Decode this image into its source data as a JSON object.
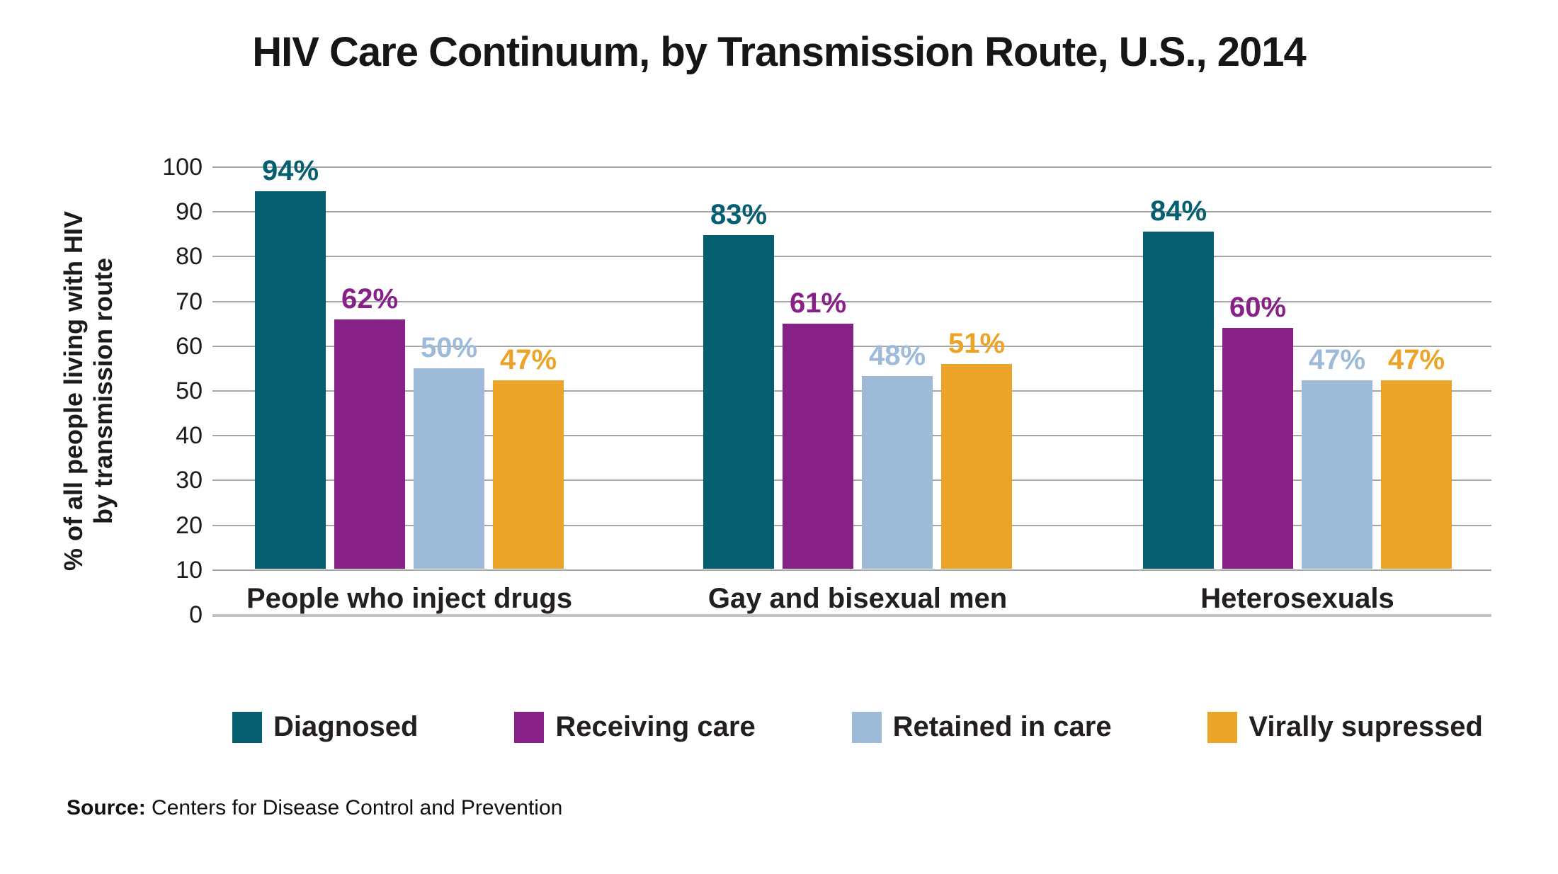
{
  "title": "HIV Care Continuum, by Transmission Route, U.S., 2014",
  "y_axis": {
    "label_lines": [
      "% of all people living with HIV",
      "by transmission route"
    ],
    "ticks": [
      100,
      90,
      80,
      70,
      60,
      50,
      40,
      30,
      20,
      10,
      0
    ]
  },
  "source": {
    "prefix": "Source:",
    "text": " Centers for Disease Control and Prevention"
  },
  "colors": {
    "teal": "#055F70",
    "purple": "#872188",
    "light_blue": "#9DBAD9",
    "orange": "#EBA428",
    "gridline": "#A6A6A6",
    "baseline": "#C2C2C2"
  },
  "chart_data": {
    "type": "bar",
    "title": "HIV Care Continuum, by Transmission Route, U.S., 2014",
    "categories": [
      "People who inject drugs",
      "Gay and bisexual men",
      "Heterosexuals"
    ],
    "series": [
      {
        "name": "Diagnosed",
        "color": "#055F70",
        "values": [
          94,
          83,
          84
        ]
      },
      {
        "name": "Receiving care",
        "color": "#872188",
        "values": [
          62,
          61,
          60
        ]
      },
      {
        "name": "Retained in care",
        "color": "#9DBAD9",
        "values": [
          50,
          48,
          47
        ]
      },
      {
        "name": "Virally supressed",
        "color": "#EBA428",
        "values": [
          47,
          51,
          47
        ]
      }
    ],
    "value_suffix": "%",
    "ylabel": "% of all people living with HIV by transmission route",
    "ylim": [
      0,
      100
    ],
    "grid": true,
    "legend_position": "bottom"
  }
}
